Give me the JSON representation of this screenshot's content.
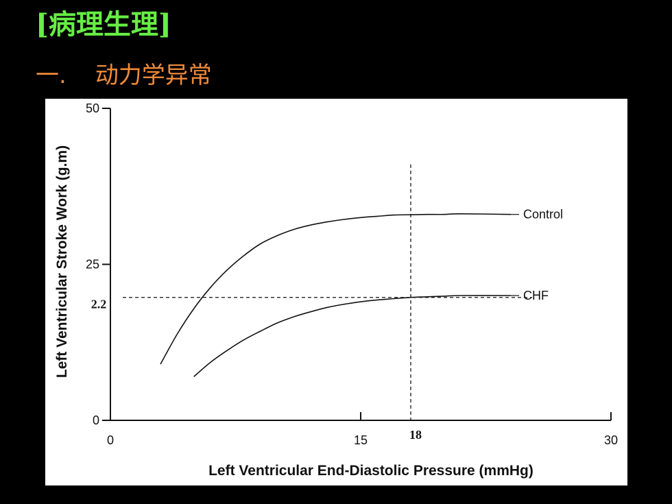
{
  "slide": {
    "title": "[病理生理]",
    "subtitle_number": "一.",
    "subtitle_text": "动力学异常",
    "colors": {
      "background": "#000000",
      "title": "#66ee44",
      "subtitle": "#f08a3a",
      "chart_bg": "#ffffff",
      "ink": "#111111"
    }
  },
  "chart_data": {
    "type": "line",
    "title": "",
    "xlabel": "Left Ventricular End-Diastolic Pressure (mmHg)",
    "ylabel": "Left Ventricular Stroke Work (g.m)",
    "xlim": [
      0,
      30
    ],
    "ylim": [
      0,
      50
    ],
    "xticks": [
      0,
      15,
      30
    ],
    "yticks": [
      0,
      25,
      50
    ],
    "grid": false,
    "series": [
      {
        "name": "Control",
        "x": [
          3,
          4,
          5,
          6,
          7,
          8,
          9,
          10,
          11,
          12,
          13,
          14,
          15,
          16,
          17,
          18,
          19,
          20,
          21,
          24
        ],
        "y": [
          9,
          13.8,
          17.9,
          21.3,
          24.1,
          26.4,
          28.3,
          29.6,
          30.6,
          31.3,
          31.8,
          32.2,
          32.5,
          32.7,
          32.9,
          32.95,
          33,
          33,
          33.1,
          33
        ]
      },
      {
        "name": "CHF",
        "x": [
          5,
          6,
          7,
          8,
          9,
          10,
          11,
          12,
          13,
          14,
          15,
          16,
          17,
          18,
          19,
          20,
          21,
          24
        ],
        "y": [
          7,
          9.3,
          11.2,
          12.9,
          14.3,
          15.6,
          16.6,
          17.4,
          18.1,
          18.6,
          19.0,
          19.3,
          19.5,
          19.7,
          19.8,
          19.9,
          20,
          20
        ]
      }
    ],
    "annotations": [
      {
        "axis": "x",
        "value": 18,
        "label": "18"
      },
      {
        "axis": "y",
        "value": 19.7,
        "label": "2.2"
      }
    ]
  }
}
